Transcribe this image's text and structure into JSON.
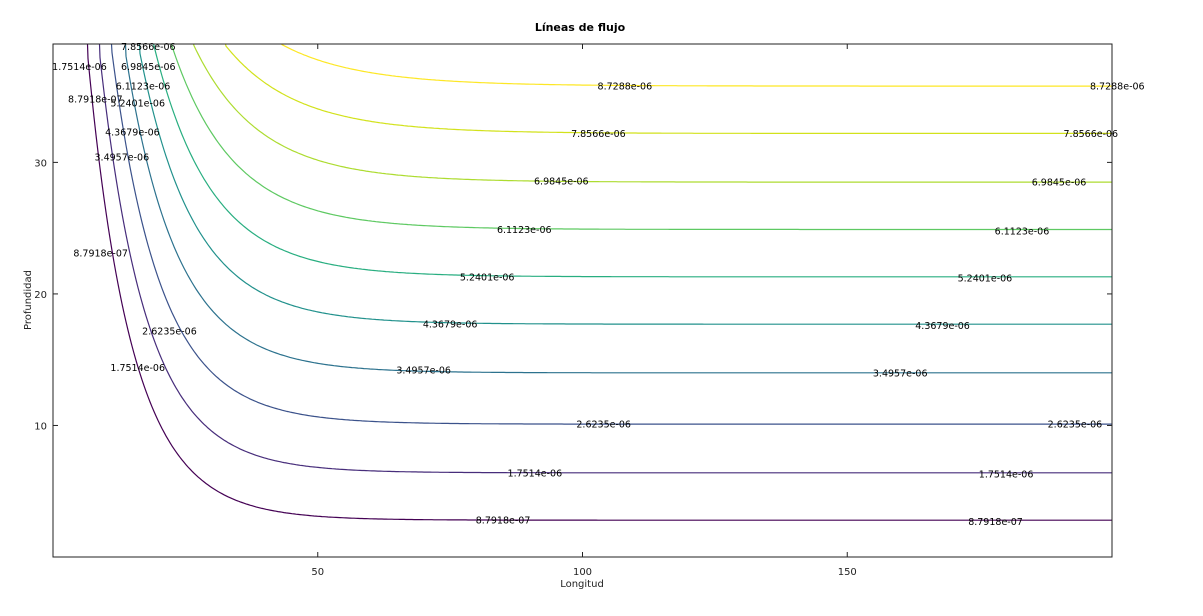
{
  "chart_data": {
    "type": "contour",
    "title": "Líneas de flujo",
    "xlabel": "Longitud",
    "ylabel": "Profundidad",
    "xlim": [
      0,
      200
    ],
    "ylim": [
      0,
      39
    ],
    "xticks": [
      50,
      100,
      150
    ],
    "yticks": [
      10,
      20,
      30
    ],
    "grid": false,
    "levels": [
      {
        "label": "8.7918e-07",
        "level": 8.7918e-07,
        "asymptote_y": 2.8,
        "color": "#440154",
        "labels_at": [
          {
            "x": 8,
            "y": 34.8
          },
          {
            "x": 9,
            "y": 23.1
          },
          {
            "x": 85,
            "y": 2.8
          },
          {
            "x": 178,
            "y": 2.7
          }
        ]
      },
      {
        "label": "1.7514e-06",
        "level": 1.7514e-06,
        "asymptote_y": 6.4,
        "color": "#472d7b",
        "labels_at": [
          {
            "x": 5,
            "y": 37.3
          },
          {
            "x": 16,
            "y": 14.4
          },
          {
            "x": 91,
            "y": 6.4
          },
          {
            "x": 180,
            "y": 6.3
          }
        ]
      },
      {
        "label": "2.6235e-06",
        "level": 2.6235e-06,
        "asymptote_y": 10.1,
        "color": "#3b528b",
        "labels_at": [
          {
            "x": 22,
            "y": 17.2
          },
          {
            "x": 104,
            "y": 10.1
          },
          {
            "x": 193,
            "y": 10.1
          }
        ]
      },
      {
        "label": "3.4957e-06",
        "level": 3.4957e-06,
        "asymptote_y": 14.0,
        "color": "#2c728e",
        "labels_at": [
          {
            "x": 13,
            "y": 30.4
          },
          {
            "x": 70,
            "y": 14.2
          },
          {
            "x": 160,
            "y": 14.0
          }
        ]
      },
      {
        "label": "4.3679e-06",
        "level": 4.3679e-06,
        "asymptote_y": 17.7,
        "color": "#21918c",
        "labels_at": [
          {
            "x": 15,
            "y": 32.3
          },
          {
            "x": 75,
            "y": 17.7
          },
          {
            "x": 168,
            "y": 17.6
          }
        ]
      },
      {
        "label": "5.2401e-06",
        "level": 5.2401e-06,
        "asymptote_y": 21.3,
        "color": "#28ae80",
        "labels_at": [
          {
            "x": 16,
            "y": 34.5
          },
          {
            "x": 82,
            "y": 21.3
          },
          {
            "x": 176,
            "y": 21.2
          }
        ]
      },
      {
        "label": "6.1123e-06",
        "level": 6.1123e-06,
        "asymptote_y": 24.9,
        "color": "#5ec962",
        "labels_at": [
          {
            "x": 17,
            "y": 35.8
          },
          {
            "x": 89,
            "y": 24.9
          },
          {
            "x": 183,
            "y": 24.8
          }
        ]
      },
      {
        "label": "6.9845e-06",
        "level": 6.9845e-06,
        "asymptote_y": 28.5,
        "color": "#addc30",
        "labels_at": [
          {
            "x": 18,
            "y": 37.3
          },
          {
            "x": 96,
            "y": 28.6
          },
          {
            "x": 190,
            "y": 28.5
          }
        ]
      },
      {
        "label": "7.8566e-06",
        "level": 7.8566e-06,
        "asymptote_y": 32.2,
        "color": "#d2e21b",
        "labels_at": [
          {
            "x": 18,
            "y": 38.8
          },
          {
            "x": 103,
            "y": 32.2
          },
          {
            "x": 196,
            "y": 32.2
          }
        ]
      },
      {
        "label": "8.7288e-06",
        "level": 8.7288e-06,
        "asymptote_y": 35.8,
        "color": "#fde725",
        "labels_at": [
          {
            "x": 108,
            "y": 35.8
          },
          {
            "x": 201,
            "y": 35.8
          }
        ]
      }
    ]
  }
}
